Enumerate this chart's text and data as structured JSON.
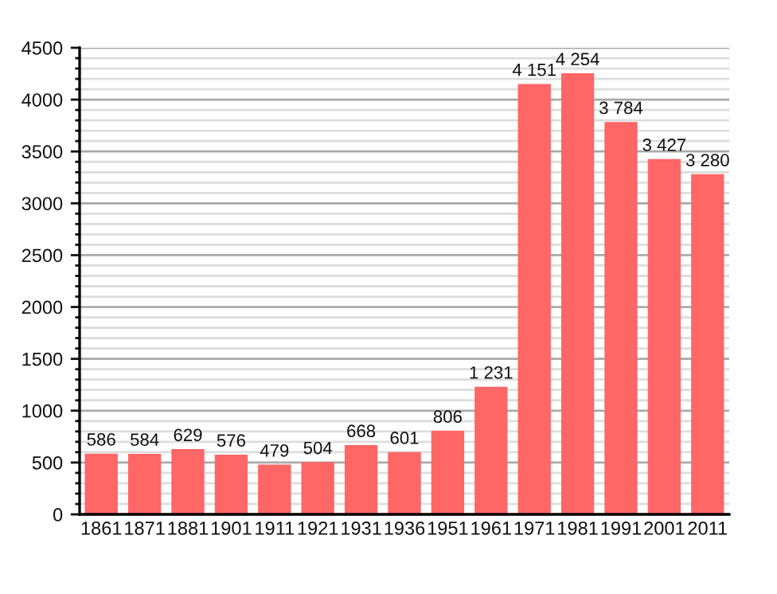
{
  "chart_data": {
    "type": "bar",
    "categories": [
      "1861",
      "1871",
      "1881",
      "1901",
      "1911",
      "1921",
      "1931",
      "1936",
      "1951",
      "1961",
      "1971",
      "1981",
      "1991",
      "2001",
      "2011"
    ],
    "values": [
      586,
      584,
      629,
      576,
      479,
      504,
      668,
      601,
      806,
      1231,
      4151,
      4254,
      3784,
      3427,
      3280
    ],
    "value_labels": [
      "586",
      "584",
      "629",
      "576",
      "479",
      "504",
      "668",
      "601",
      "806",
      "1 231",
      "4 151",
      "4 254",
      "3 784",
      "3 427",
      "3 280"
    ],
    "color": "#ff6666",
    "ylim": [
      0,
      4500
    ],
    "yticks": [
      0,
      {
        "value": 100,
        "label": null
      },
      {
        "value": 200,
        "label": null
      },
      {
        "value": 300,
        "label": null
      },
      {
        "value": 400,
        "label": null
      },
      500,
      {
        "value": 600,
        "label": null
      },
      {
        "value": 700,
        "label": null
      },
      {
        "value": 800,
        "label": null
      },
      {
        "value": 900,
        "label": null
      },
      1000,
      {
        "value": 1100,
        "label": null
      },
      {
        "value": 1200,
        "label": null
      },
      {
        "value": 1300,
        "label": null
      },
      {
        "value": 1400,
        "label": null
      },
      1500,
      {
        "value": 1600,
        "label": null
      },
      {
        "value": 1700,
        "label": null
      },
      {
        "value": 1800,
        "label": null
      },
      {
        "value": 1900,
        "label": null
      },
      2000,
      {
        "value": 2100,
        "label": null
      },
      {
        "value": 2200,
        "label": null
      },
      {
        "value": 2300,
        "label": null
      },
      {
        "value": 2400,
        "label": null
      },
      2500,
      {
        "value": 2600,
        "label": null
      },
      {
        "value": 2700,
        "label": null
      },
      {
        "value": 2800,
        "label": null
      },
      {
        "value": 2900,
        "label": null
      },
      3000,
      {
        "value": 3100,
        "label": null
      },
      {
        "value": 3200,
        "label": null
      },
      {
        "value": 3300,
        "label": null
      },
      {
        "value": 3400,
        "label": null
      },
      3500,
      {
        "value": 3600,
        "label": null
      },
      {
        "value": 3700,
        "label": null
      },
      {
        "value": 3800,
        "label": null
      },
      {
        "value": 3900,
        "label": null
      },
      4000,
      {
        "value": 4100,
        "label": null
      },
      {
        "value": 4200,
        "label": null
      },
      {
        "value": 4300,
        "label": null
      },
      {
        "value": 4400,
        "label": null
      },
      4500
    ],
    "grid": "y"
  }
}
